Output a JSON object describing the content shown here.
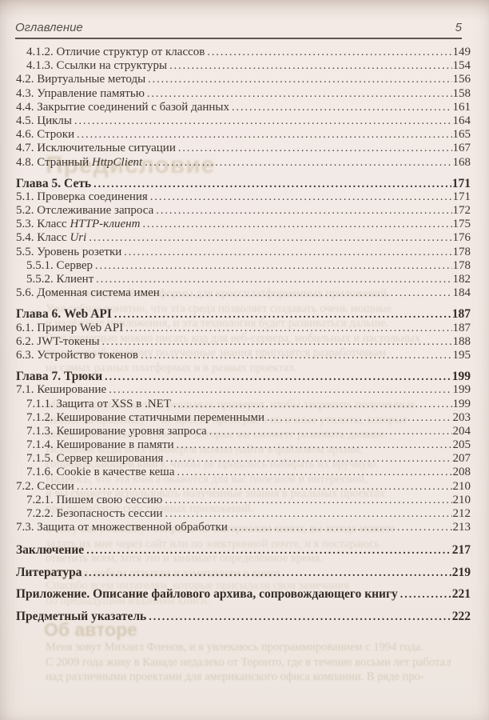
{
  "page_header": {
    "title": "Оглавление",
    "page_number": "5"
  },
  "toc": {
    "entries": [
      {
        "text": "4.1.2. Отличие структур от классов",
        "page": "149",
        "level": 2
      },
      {
        "text": "4.1.3. Ссылки на структуры",
        "page": "154",
        "level": 2
      },
      {
        "text": "4.2. Виртуальные методы",
        "page": "156"
      },
      {
        "text": "4.3. Управление памятью",
        "page": "158"
      },
      {
        "text": "4.4. Закрытие соединений с базой данных",
        "page": "161"
      },
      {
        "text": "4.5. Циклы",
        "page": "164"
      },
      {
        "text": "4.6. Строки",
        "page": "165"
      },
      {
        "text": "4.7. Исключительные ситуации",
        "page": "167"
      },
      {
        "text": "4.8. Странный ",
        "italic": "HttpClient",
        "page": "168"
      },
      {
        "text": "Глава 5. Сеть",
        "page": "171",
        "chapter": true
      },
      {
        "text": "5.1. Проверка соединения",
        "page": "171"
      },
      {
        "text": "5.2. Отслеживание запроса",
        "page": "172"
      },
      {
        "text": "5.3. Класс ",
        "italic": "HTTP-клиент",
        "page": "175"
      },
      {
        "text": "5.4. Класс ",
        "italic": "Uri",
        "page": "176"
      },
      {
        "text": "5.5. Уровень розетки",
        "page": "178"
      },
      {
        "text": "5.5.1. Сервер",
        "page": "178",
        "level": 2
      },
      {
        "text": "5.5.2. Клиент",
        "page": "182",
        "level": 2
      },
      {
        "text": "5.6. Доменная система имен",
        "page": "184"
      },
      {
        "text": "Глава 6. Web API",
        "page": "187",
        "chapter": true
      },
      {
        "text": "6.1. Пример Web API",
        "page": "187"
      },
      {
        "text": "6.2. JWT-токены",
        "page": "188"
      },
      {
        "text": "6.3. Устройство токенов",
        "page": "195"
      },
      {
        "text": "Глава 7. Трюки",
        "page": "199",
        "chapter": true
      },
      {
        "text": "7.1. Кеширование",
        "page": "199"
      },
      {
        "text": "7.1.1. Защита от XSS в .NET",
        "page": "199",
        "level": 2
      },
      {
        "text": "7.1.2. Кеширование статичными переменными",
        "page": "203",
        "level": 2
      },
      {
        "text": "7.1.3. Кеширование уровня запроса",
        "page": "204",
        "level": 2
      },
      {
        "text": "7.1.4. Кеширование в памяти",
        "page": "205",
        "level": 2
      },
      {
        "text": "7.1.5. Сервер кеширования",
        "page": "207",
        "level": 2
      },
      {
        "text": "7.1.6. Cookie в качестве кеша",
        "page": "208",
        "level": 2
      },
      {
        "text": "7.2. Сессии",
        "page": "210"
      },
      {
        "text": "7.2.1. Пишем свою сессию",
        "page": "210",
        "level": 2
      },
      {
        "text": "7.2.2. Безопасность сессии",
        "page": "212",
        "level": 2
      },
      {
        "text": "7.3. Защита от множественной обработки",
        "page": "213"
      },
      {
        "text": "Заключение",
        "page": "217",
        "standalone": true
      },
      {
        "text": "Литература",
        "page": "219",
        "standalone": true
      },
      {
        "text": "Приложение. Описание файлового архива, сопровождающего книгу",
        "page": "221",
        "standalone": true
      },
      {
        "text": "Предметный указатель",
        "page": "222",
        "standalone": true
      }
    ]
  },
  "ghost": {
    "heading_preface": "Предисловие",
    "heading_author": "Об авторе",
    "blocks": {
      "a": [
        "в качестве единой платформы для кроссплатформенных приложений.",
        "Уже сейчас понятно, что эта среда позволяет создавать очень мощные",
        "и надёжные приложения, и эта технология будет развиваться дальше.",
        "С её помощью можно писать код для веб-сервера, мобильных и настольных",
        "приложений, поэтому полученные знания пригодятся разработчикам",
        "на самых разных платформах и в разных проектах."
      ],
      "b": [
        "Мы напишем несколько реальных примеров, чтобы закрепить полученные",
        "знания на практике, — не просто примеры, а полезные утилиты, которые",
        "могут пригодиться в работе и которые вы сможете развивать дальше.",
        "Исходные коды всех примеров можно найти в файловом архиве,",
        "сопровождающем книгу, чтобы не пришлось набирать их вручную.",
        "Надеюсь, что эта книга окажется для вас полезной и интересной,",
        "и вы сможете использовать полученные знания в реальных проектах",
        "при разработке собственных приложений."
      ],
      "c": [
        "Если у вас возникнут вопросы по материалам книги, вы всегда можете",
        "задать их мне через сайт или по электронной почте, и я постараюсь",
        "ответить всем, хотя это и занимает определённое время.",
        "Буду рад любым отзывам и замечаниям о книге."
      ],
      "d": [
        "Спасибо всем читателям, которые присылали свои замечания",
        "по предыдущим изданиям книги."
      ],
      "e": [
        "Меня зовут Михаил Фленов, и я увлекаюсь программированием с 1994 года.",
        "С 2009 года живу в Канаде недалеко от Торонто, где в течение восьми лет работал",
        "над различными проектами для американского офиса компании. В ряде про-"
      ]
    }
  }
}
